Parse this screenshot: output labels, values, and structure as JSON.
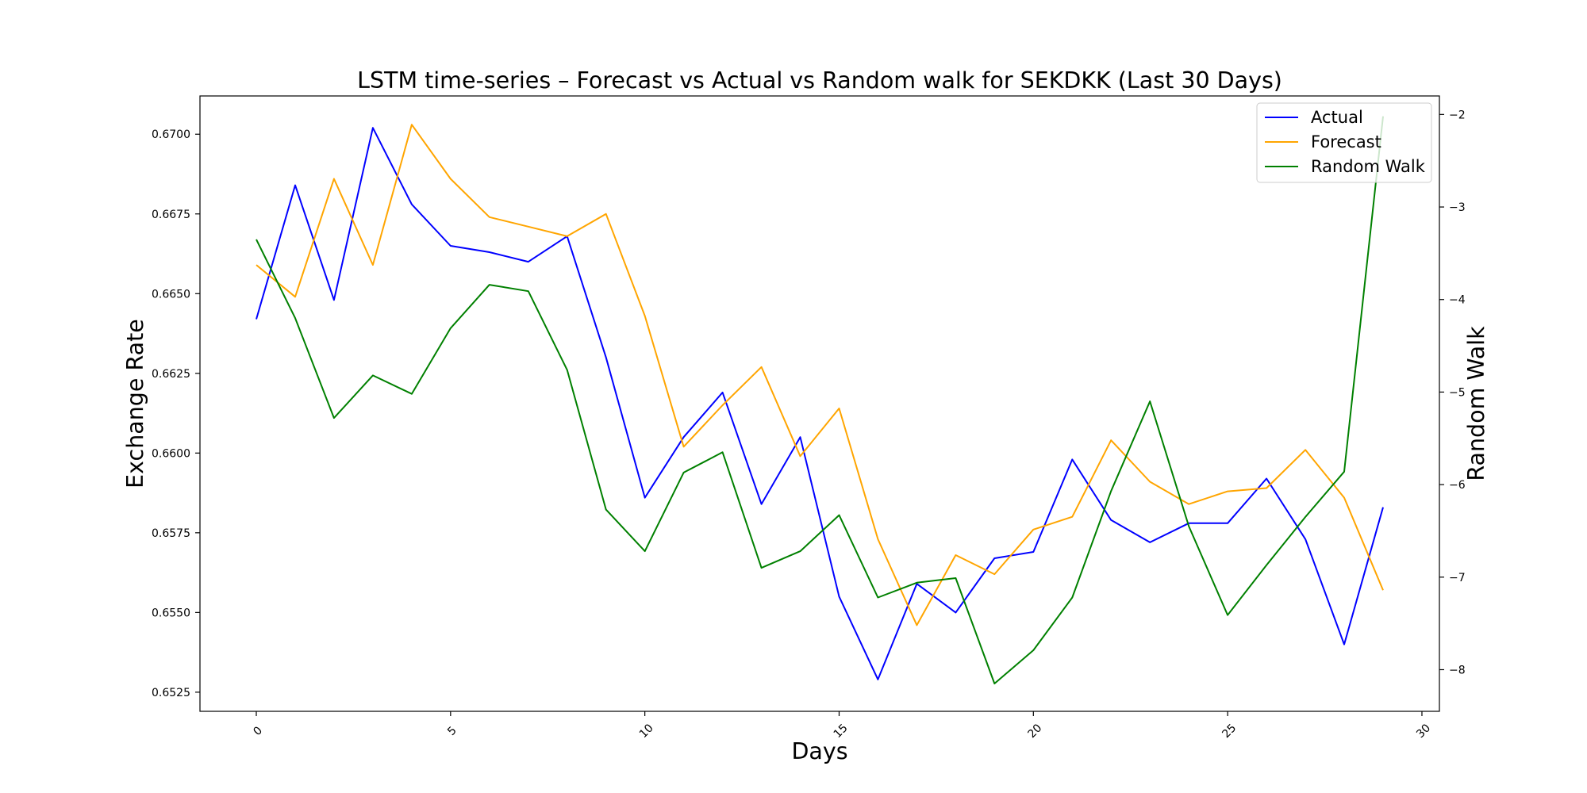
{
  "chart_data": {
    "type": "line",
    "title": "LSTM time-series –  Forecast vs Actual vs Random walk for SEKDKK (Last 30 Days)",
    "xlabel": "Days",
    "ylabel": "Exchange Rate",
    "y2label": "Random Walk",
    "xlim": [
      -1.45,
      30.45
    ],
    "ylim": [
      0.6519,
      0.6712
    ],
    "y2lim": [
      -8.45,
      -1.8
    ],
    "x_ticks": [
      0,
      5,
      10,
      15,
      20,
      25,
      30
    ],
    "y_ticks": [
      0.6525,
      0.655,
      0.6575,
      0.66,
      0.6625,
      0.665,
      0.6675,
      0.67
    ],
    "y2_ticks": [
      -8,
      -7,
      -6,
      -5,
      -4,
      -3,
      -2
    ],
    "grid": false,
    "legend_position": "top-right",
    "x": [
      0,
      1,
      2,
      3,
      4,
      5,
      6,
      7,
      8,
      9,
      10,
      11,
      12,
      13,
      14,
      15,
      16,
      17,
      18,
      19,
      20,
      21,
      22,
      23,
      24,
      25,
      26,
      27,
      28,
      29
    ],
    "series": [
      {
        "name": "Actual",
        "axis": "left",
        "color": "#0000ff",
        "values": [
          0.6642,
          0.6684,
          0.6648,
          0.6702,
          0.6678,
          0.6665,
          0.6663,
          0.666,
          0.6668,
          0.663,
          0.6586,
          0.6605,
          0.6619,
          0.6584,
          0.6605,
          0.6555,
          0.6529,
          0.6559,
          0.655,
          0.6567,
          0.6569,
          0.6598,
          0.6579,
          0.6572,
          0.6578,
          0.6578,
          0.6592,
          0.6573,
          0.654,
          0.6583
        ]
      },
      {
        "name": "Forecast",
        "axis": "left",
        "color": "#ffa500",
        "values": [
          0.6659,
          0.6649,
          0.6686,
          0.6659,
          0.6703,
          0.6686,
          0.6674,
          0.6671,
          0.6668,
          0.6675,
          0.6643,
          0.6602,
          0.6615,
          0.6627,
          0.6599,
          0.6614,
          0.6573,
          0.6546,
          0.6568,
          0.6562,
          0.6576,
          0.658,
          0.6604,
          0.6591,
          0.6584,
          0.6588,
          0.6589,
          0.6601,
          0.6586,
          0.6557
        ]
      },
      {
        "name": "Random Walk",
        "axis": "right",
        "color": "#008000",
        "values": [
          -3.35,
          -4.2,
          -5.28,
          -4.82,
          -5.02,
          -4.31,
          -3.84,
          -3.91,
          -4.76,
          -6.27,
          -6.72,
          -5.87,
          -5.65,
          -6.9,
          -6.72,
          -6.33,
          -7.22,
          -7.06,
          -7.01,
          -8.15,
          -7.79,
          -7.22,
          -6.07,
          -5.1,
          -6.45,
          -7.41,
          -6.87,
          -6.35,
          -5.86,
          -2.02
        ]
      }
    ]
  }
}
